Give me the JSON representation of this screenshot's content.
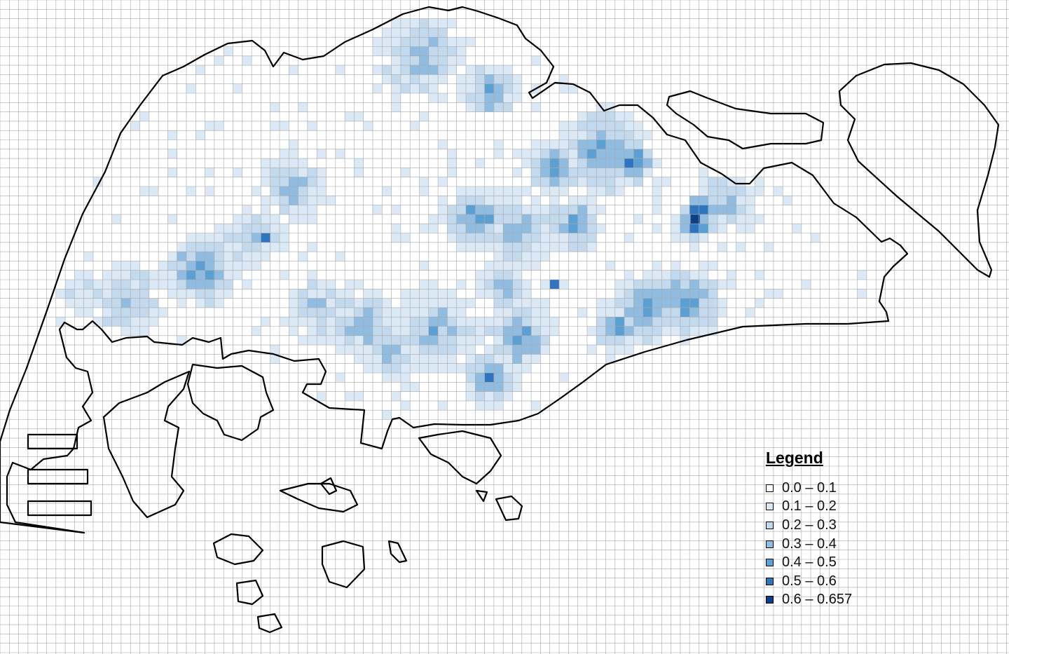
{
  "map": {
    "colors": {
      "grid": "#a8a8a8",
      "outline": "#000000",
      "classes": [
        "#ffffff",
        "#dbe8f6",
        "#c3d9ee",
        "#8fbce0",
        "#5c9fd3",
        "#2e74bf",
        "#0b3f86"
      ]
    },
    "legend": {
      "title": "Legend",
      "items": [
        {
          "label": "0.0 – 0.1",
          "color": "#ffffff"
        },
        {
          "label": "0.1 – 0.2",
          "color": "#dbe8f6"
        },
        {
          "label": "0.2 – 0.3",
          "color": "#c3d9ee"
        },
        {
          "label": "0.3 – 0.4",
          "color": "#8fbce0"
        },
        {
          "label": "0.4 – 0.5",
          "color": "#5c9fd3"
        },
        {
          "label": "0.5 – 0.6",
          "color": "#2e74bf"
        },
        {
          "label": "0.6 – 0.657",
          "color": "#0b3f86"
        }
      ]
    }
  },
  "chart_data": {
    "type": "heatmap",
    "title": "",
    "legend_title": "Legend",
    "legend_position": "bottom-right",
    "classes": [
      "0.0 – 0.1",
      "0.1 – 0.2",
      "0.2 – 0.3",
      "0.3 – 0.4",
      "0.4 – 0.5",
      "0.5 – 0.6",
      "0.6 – 0.657"
    ],
    "value_range": [
      0.0,
      0.657
    ],
    "note": "Grid cells over Singapore island shaded by value class; highest values (0.6–0.657) in the east-central area."
  }
}
